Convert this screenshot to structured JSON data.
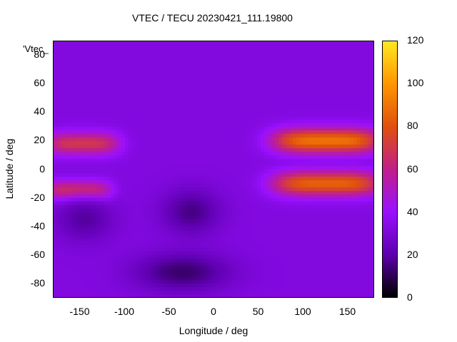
{
  "chart_data": {
    "type": "heatmap",
    "title": "VTEC / TECU 20230421_111.19800",
    "key_label": "'Vtec_",
    "xlabel": "Longitude / deg",
    "ylabel": "Latitude / deg",
    "xlim": [
      -180,
      180
    ],
    "ylim": [
      -90,
      90
    ],
    "x_ticks": [
      -150,
      -100,
      -50,
      0,
      50,
      100,
      150
    ],
    "y_ticks": [
      -80,
      -60,
      -40,
      -20,
      0,
      20,
      40,
      60,
      80
    ],
    "colorbar": {
      "range": [
        0,
        120
      ],
      "ticks": [
        0,
        20,
        40,
        60,
        80,
        100,
        120
      ],
      "colors": [
        "#000000",
        "#5e00b0",
        "#9a10ff",
        "#c0208a",
        "#e0500e",
        "#ff9600",
        "#ffe820"
      ]
    },
    "grid": false,
    "features": {
      "background_level": 32,
      "equatorial_anomaly_crests": [
        {
          "lon": [
            75,
            180
          ],
          "lat": [
            15,
            25
          ],
          "value": 90
        },
        {
          "lon": [
            75,
            180
          ],
          "lat": [
            -15,
            -5
          ],
          "value": 85
        },
        {
          "lon": [
            -180,
            -115
          ],
          "lat": [
            14,
            22
          ],
          "value": 70
        },
        {
          "lon": [
            -180,
            -125
          ],
          "lat": [
            -18,
            -12
          ],
          "value": 72
        }
      ],
      "low_regions": [
        {
          "lon": [
            -80,
            10
          ],
          "lat": [
            -80,
            -65
          ],
          "value": 12
        },
        {
          "lon": [
            -50,
            0
          ],
          "lat": [
            -40,
            -20
          ],
          "value": 15
        },
        {
          "lon": [
            -170,
            -120
          ],
          "lat": [
            -45,
            -25
          ],
          "value": 18
        }
      ]
    }
  }
}
